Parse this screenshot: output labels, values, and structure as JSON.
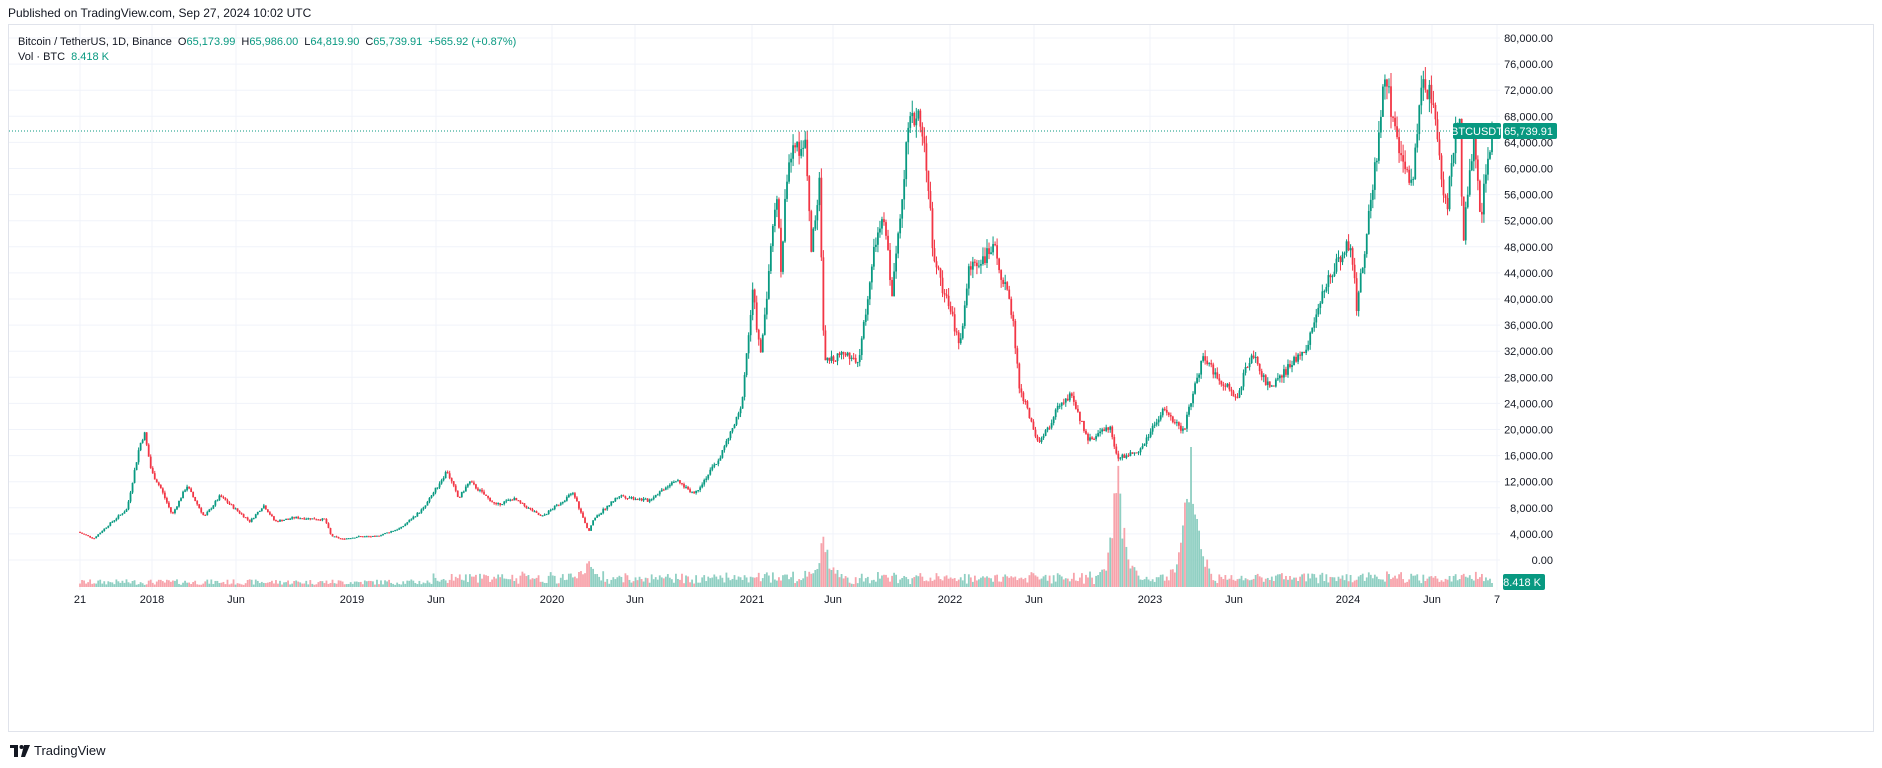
{
  "published": "Published on TradingView.com, Sep 27, 2024 10:02 UTC",
  "legend": {
    "symbol": "Bitcoin / TetherUS, 1D, Binance",
    "open_label": "O",
    "open": "65,173.99",
    "high_label": "H",
    "high": "65,986.00",
    "low_label": "L",
    "low": "64,819.90",
    "close_label": "C",
    "close": "65,739.91",
    "change": "+565.92 (+0.87%)",
    "vol_label": "Vol · BTC",
    "vol_value": "8.418 K"
  },
  "price_tag": {
    "symbol": "BTCUSDT",
    "value": "65,739.91"
  },
  "volume_tag": "8.418 K",
  "footer": {
    "brand": "TradingView",
    "logo_icon": "tradingview-logo-icon"
  },
  "colors": {
    "up": "#089981",
    "down": "#f23645",
    "up_vol": "#8fcfc2",
    "down_vol": "#f7a3ab",
    "grid": "#f0f3fa",
    "axis_text": "#131722"
  },
  "chart_data": {
    "type": "candlestick",
    "symbol": "BTCUSDT",
    "interval": "1D",
    "exchange": "Binance",
    "last_price": 65739.91,
    "ylim": [
      0,
      82000
    ],
    "y_ticks": [
      "80,000.00",
      "76,000.00",
      "72,000.00",
      "68,000.00",
      "64,000.00",
      "60,000.00",
      "56,000.00",
      "52,000.00",
      "48,000.00",
      "44,000.00",
      "40,000.00",
      "36,000.00",
      "32,000.00",
      "28,000.00",
      "24,000.00",
      "20,000.00",
      "16,000.00",
      "12,000.00",
      "8,000.00",
      "4,000.00",
      "0.00"
    ],
    "x_ticks": [
      "21",
      "2018",
      "Jun",
      "2019",
      "Jun",
      "2020",
      "Jun",
      "2021",
      "Jun",
      "2022",
      "Jun",
      "2023",
      "Jun",
      "2024",
      "Jun",
      "7"
    ],
    "x_range": [
      "2017-08-17",
      "2024-09-27"
    ],
    "price_series_approx": [
      [
        "2017-08-17",
        4300
      ],
      [
        "2017-09-15",
        3300
      ],
      [
        "2017-10-15",
        5600
      ],
      [
        "2017-11-15",
        7800
      ],
      [
        "2017-12-08",
        17500
      ],
      [
        "2017-12-17",
        19500
      ],
      [
        "2017-12-30",
        13500
      ],
      [
        "2018-01-16",
        11000
      ],
      [
        "2018-02-06",
        6900
      ],
      [
        "2018-03-05",
        11400
      ],
      [
        "2018-04-06",
        6600
      ],
      [
        "2018-05-05",
        9800
      ],
      [
        "2018-06-29",
        5900
      ],
      [
        "2018-07-24",
        8400
      ],
      [
        "2018-08-14",
        5900
      ],
      [
        "2018-09-20",
        6500
      ],
      [
        "2018-11-14",
        6200
      ],
      [
        "2018-11-25",
        3700
      ],
      [
        "2018-12-15",
        3200
      ],
      [
        "2019-01-15",
        3600
      ],
      [
        "2019-02-15",
        3600
      ],
      [
        "2019-04-02",
        4900
      ],
      [
        "2019-05-15",
        8000
      ],
      [
        "2019-06-26",
        13700
      ],
      [
        "2019-07-17",
        9400
      ],
      [
        "2019-08-06",
        12000
      ],
      [
        "2019-09-24",
        8400
      ],
      [
        "2019-10-26",
        9400
      ],
      [
        "2019-12-17",
        6600
      ],
      [
        "2020-02-13",
        10300
      ],
      [
        "2020-03-12",
        4200
      ],
      [
        "2020-03-20",
        6200
      ],
      [
        "2020-05-07",
        9900
      ],
      [
        "2020-06-30",
        9100
      ],
      [
        "2020-08-17",
        12300
      ],
      [
        "2020-09-23",
        10200
      ],
      [
        "2020-11-07",
        15500
      ],
      [
        "2020-12-17",
        23000
      ],
      [
        "2021-01-08",
        41000
      ],
      [
        "2021-01-22",
        31000
      ],
      [
        "2021-02-21",
        57000
      ],
      [
        "2021-02-28",
        44000
      ],
      [
        "2021-03-13",
        61000
      ],
      [
        "2021-04-14",
        64800
      ],
      [
        "2021-04-25",
        47500
      ],
      [
        "2021-05-10",
        58000
      ],
      [
        "2021-05-19",
        30000
      ],
      [
        "2021-06-21",
        32000
      ],
      [
        "2021-07-20",
        29800
      ],
      [
        "2021-08-22",
        49000
      ],
      [
        "2021-09-07",
        52000
      ],
      [
        "2021-09-21",
        40500
      ],
      [
        "2021-10-20",
        66000
      ],
      [
        "2021-11-10",
        69000
      ],
      [
        "2021-11-28",
        57000
      ],
      [
        "2021-12-04",
        47000
      ],
      [
        "2022-01-24",
        33000
      ],
      [
        "2022-02-10",
        45000
      ],
      [
        "2022-03-28",
        47500
      ],
      [
        "2022-04-30",
        37600
      ],
      [
        "2022-05-12",
        26700
      ],
      [
        "2022-06-18",
        17600
      ],
      [
        "2022-07-30",
        24500
      ],
      [
        "2022-08-15",
        25000
      ],
      [
        "2022-09-18",
        18300
      ],
      [
        "2022-10-25",
        20500
      ],
      [
        "2022-11-09",
        15600
      ],
      [
        "2022-12-20",
        16800
      ],
      [
        "2023-01-31",
        23100
      ],
      [
        "2023-03-10",
        19600
      ],
      [
        "2023-04-14",
        31000
      ],
      [
        "2023-06-15",
        24800
      ],
      [
        "2023-07-14",
        31800
      ],
      [
        "2023-08-17",
        26000
      ],
      [
        "2023-10-23",
        33000
      ],
      [
        "2023-12-05",
        44000
      ],
      [
        "2024-01-11",
        49000
      ],
      [
        "2024-01-23",
        38500
      ],
      [
        "2024-02-28",
        62000
      ],
      [
        "2024-03-14",
        73800
      ],
      [
        "2024-04-17",
        60800
      ],
      [
        "2024-05-01",
        56500
      ],
      [
        "2024-05-21",
        71900
      ],
      [
        "2024-06-07",
        71900
      ],
      [
        "2024-07-05",
        53500
      ],
      [
        "2024-07-29",
        70000
      ],
      [
        "2024-08-05",
        49100
      ],
      [
        "2024-08-25",
        64500
      ],
      [
        "2024-09-06",
        52500
      ],
      [
        "2024-09-27",
        65739.91
      ]
    ],
    "volume_spikes_approx": [
      [
        "2020-03-12",
        2.4
      ],
      [
        "2021-05-19",
        6.5
      ],
      [
        "2022-11-09",
        16.5
      ],
      [
        "2023-03-24",
        22.0
      ]
    ]
  }
}
